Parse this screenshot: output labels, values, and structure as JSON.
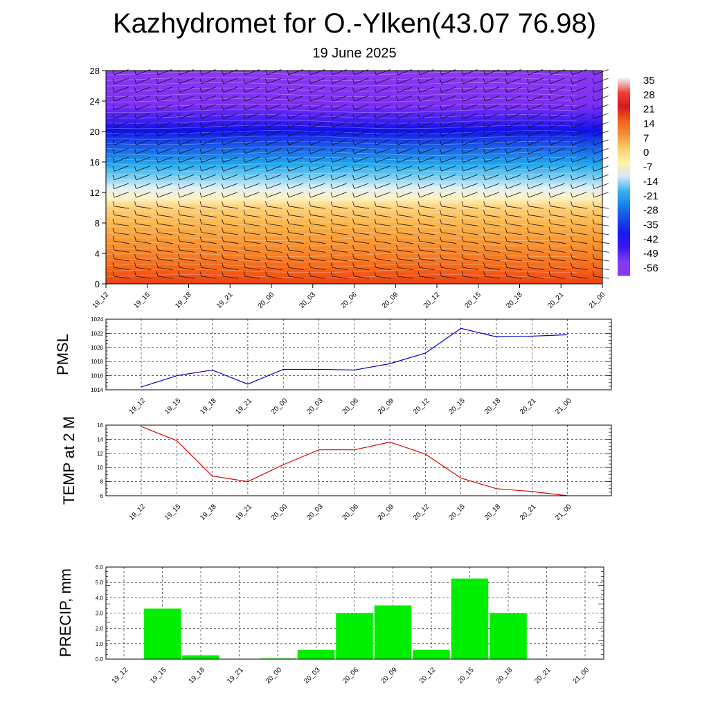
{
  "title": "Kazhydromet for O.-Ylken(43.07 76.98)",
  "subtitle": "19 June 2025",
  "chart_data": [
    {
      "type": "heatmap",
      "description_of": "vertical cross-section",
      "x_categories": [
        "19_12",
        "19_15",
        "19_18",
        "19_21",
        "20_00",
        "20_03",
        "20_06",
        "20_09",
        "20_12",
        "20_15",
        "20_18",
        "20_21",
        "21_00"
      ],
      "y_ticks": [
        0,
        4,
        8,
        12,
        16,
        20,
        24,
        28
      ],
      "ylim": [
        0,
        28
      ],
      "colorbar_labels": [
        "35",
        "28",
        "21",
        "14",
        "7",
        "0",
        "-7",
        "-14",
        "-21",
        "-28",
        "-35",
        "-42",
        "-49",
        "-56"
      ],
      "colorbar_colors": [
        "#f1f1f1",
        "#f04040",
        "#d21a1a",
        "#f06018",
        "#f89038",
        "#fcd070",
        "#fff4a8",
        "#cfe8f4",
        "#38b0f0",
        "#1880e8",
        "#1848e8",
        "#1818f0",
        "#3818f8",
        "#8838f0"
      ],
      "field": "temperature (colour) with wind barbs"
    },
    {
      "type": "line",
      "ylabel": "PMSL",
      "categories": [
        "19_12",
        "19_15",
        "19_18",
        "19_21",
        "20_00",
        "20_03",
        "20_06",
        "20_09",
        "20_12",
        "20_15",
        "20_18",
        "20_21",
        "21_00"
      ],
      "values": [
        1014.4,
        1016.0,
        1016.8,
        1014.8,
        1016.9,
        1016.9,
        1016.8,
        1017.7,
        1019.2,
        1022.7,
        1021.5,
        1021.6,
        1021.8
      ],
      "ylim": [
        1014,
        1024
      ],
      "y_ticks": [
        1014,
        1016,
        1018,
        1020,
        1022,
        1024
      ],
      "color": "#0000cc",
      "grid": true
    },
    {
      "type": "line",
      "ylabel": "TEMP at 2 M",
      "categories": [
        "19_12",
        "19_15",
        "19_18",
        "19_21",
        "20_00",
        "20_03",
        "20_06",
        "20_09",
        "20_12",
        "20_15",
        "20_18",
        "20_21",
        "21_00"
      ],
      "values": [
        15.8,
        13.8,
        8.8,
        8.0,
        10.4,
        12.5,
        12.5,
        13.6,
        11.9,
        8.5,
        7.0,
        6.6,
        6.0
      ],
      "ylim": [
        6,
        16
      ],
      "y_ticks": [
        6,
        8,
        10,
        12,
        14,
        16
      ],
      "color": "#dd0000",
      "grid": true
    },
    {
      "type": "bar",
      "ylabel": "PRECIP, mm",
      "categories": [
        "19_12",
        "19_15",
        "19_18",
        "19_21",
        "20_00",
        "20_03",
        "20_06",
        "20_09",
        "20_12",
        "20_15",
        "20_18",
        "20_21",
        "21_00"
      ],
      "values": [
        0,
        3.3,
        0.25,
        0,
        0.05,
        0.6,
        3.0,
        3.5,
        0.6,
        5.25,
        3.0,
        0,
        0
      ],
      "ylim": [
        0,
        6
      ],
      "y_ticks": [
        "0.0",
        "1.0",
        "2.0",
        "3.0",
        "4.0",
        "5.0",
        "6.0"
      ],
      "color": "#00ee00",
      "grid": true
    }
  ]
}
